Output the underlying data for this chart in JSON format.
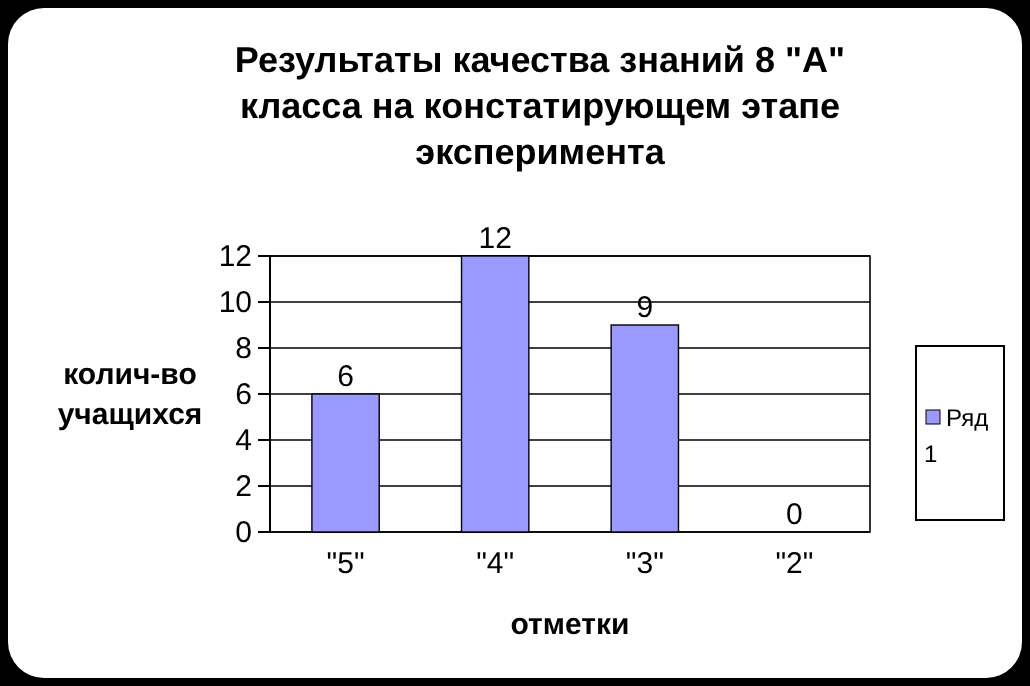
{
  "chart_data": {
    "type": "bar",
    "title": "Результаты качества знаний 8 \"А\" класса на констатирующем этапе эксперимента",
    "xlabel": "отметки",
    "ylabel": "колич-во учащихся",
    "categories": [
      "\"5\"",
      "\"4\"",
      "\"3\"",
      "\"2\""
    ],
    "series": [
      {
        "name": "Ряд 1",
        "color": "#9999ff",
        "values": [
          6,
          12,
          9,
          0
        ]
      }
    ],
    "ylim": [
      0,
      12
    ],
    "yticks": [
      0,
      2,
      4,
      6,
      8,
      10,
      12
    ],
    "grid": "y",
    "legend": "right",
    "data_labels": true
  }
}
